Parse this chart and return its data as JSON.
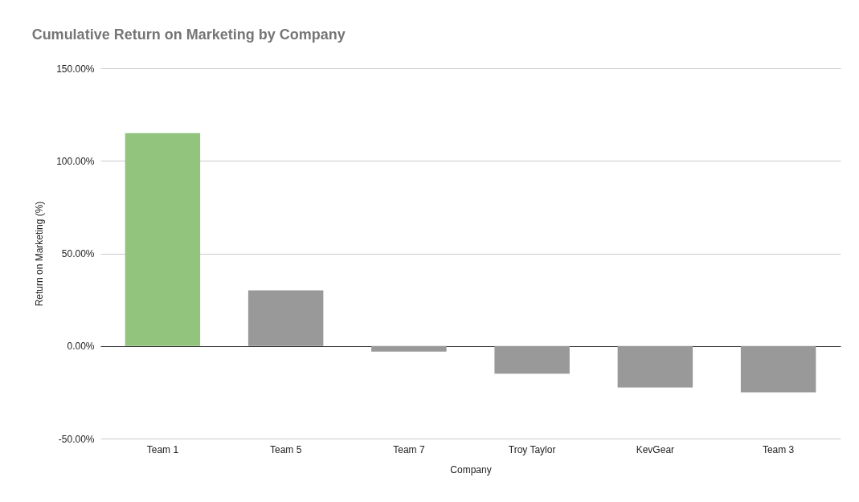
{
  "chart_data": {
    "type": "bar",
    "title": "Cumulative Return on Marketing by Company",
    "xlabel": "Company",
    "ylabel": "Return on Marketing (%)",
    "categories": [
      "Team 1",
      "Team 5",
      "Team 7",
      "Troy Taylor",
      "KevGear",
      "Team 3"
    ],
    "values": [
      115,
      30,
      -3,
      -15,
      -22.5,
      -25
    ],
    "colors": [
      "#93c47d",
      "#999999",
      "#999999",
      "#999999",
      "#999999",
      "#999999"
    ],
    "ylim": [
      -50,
      150
    ],
    "yticks": [
      {
        "value": -50,
        "label": "-50.00%"
      },
      {
        "value": 0,
        "label": "0.00%"
      },
      {
        "value": 50,
        "label": "50.00%"
      },
      {
        "value": 100,
        "label": "100.00%"
      },
      {
        "value": 150,
        "label": "150.00%"
      }
    ],
    "grid": "y",
    "legend": false
  }
}
